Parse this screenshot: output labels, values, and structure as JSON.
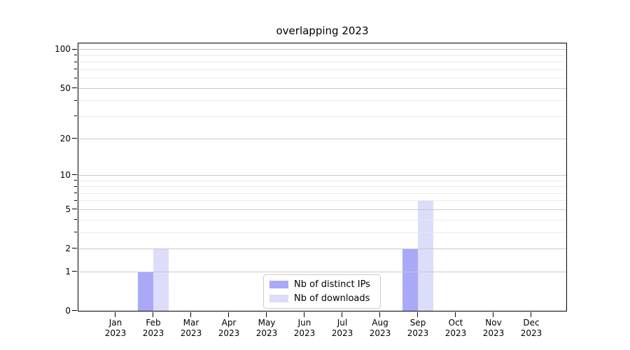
{
  "chart_data": {
    "type": "bar",
    "title": "overlapping 2023",
    "categories": [
      {
        "month": "Jan",
        "year": "2023"
      },
      {
        "month": "Feb",
        "year": "2023"
      },
      {
        "month": "Mar",
        "year": "2023"
      },
      {
        "month": "Apr",
        "year": "2023"
      },
      {
        "month": "May",
        "year": "2023"
      },
      {
        "month": "Jun",
        "year": "2023"
      },
      {
        "month": "Jul",
        "year": "2023"
      },
      {
        "month": "Aug",
        "year": "2023"
      },
      {
        "month": "Sep",
        "year": "2023"
      },
      {
        "month": "Oct",
        "year": "2023"
      },
      {
        "month": "Nov",
        "year": "2023"
      },
      {
        "month": "Dec",
        "year": "2023"
      }
    ],
    "series": [
      {
        "name": "Nb of distinct IPs",
        "color": "#a9a9f8",
        "values": [
          0,
          1,
          0,
          0,
          0,
          0,
          0,
          0,
          2,
          0,
          0,
          0
        ]
      },
      {
        "name": "Nb of downloads",
        "color": "#dcdcfb",
        "values": [
          0,
          2,
          0,
          0,
          0,
          0,
          0,
          0,
          6,
          0,
          0,
          0
        ]
      }
    ],
    "xlabel": "",
    "ylabel": "",
    "y_scale": "log1p",
    "ylim": [
      0,
      111
    ],
    "y_major_ticks": [
      0,
      1,
      2,
      5,
      10,
      20,
      50,
      100
    ],
    "y_minor_gridlines": [
      3,
      4,
      6,
      7,
      8,
      9,
      30,
      40,
      60,
      70,
      80,
      90
    ],
    "grid": true,
    "legend_position": "lower center",
    "colors": {
      "major_grid": "#c9c9c9",
      "minor_grid": "#ebebeb",
      "axis": "#000000",
      "background": "#ffffff"
    }
  }
}
